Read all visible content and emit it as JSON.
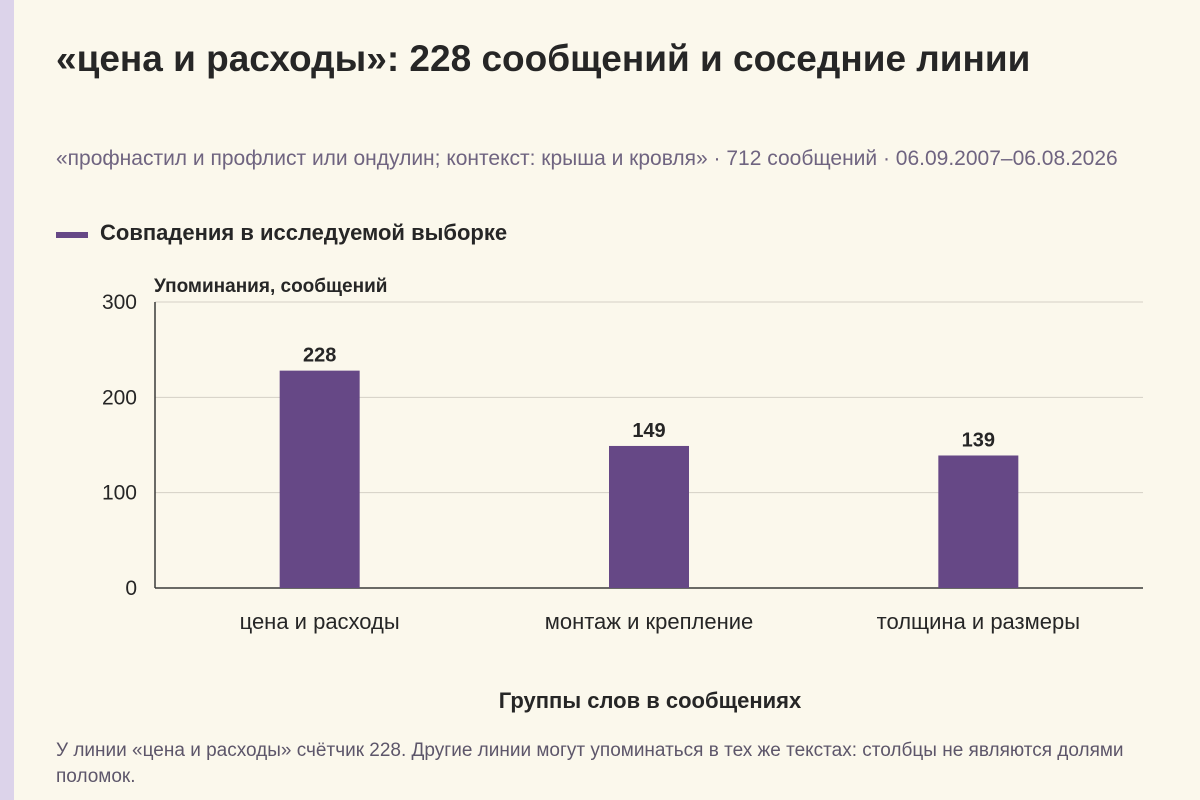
{
  "title": "«цена и расходы»: 228 сообщений и соседние линии",
  "subtitle": "«профнастил и профлист или ондулин; контекст: крыша и кровля» · 712 сообщений · 06.09.2007–06.08.2026",
  "footnote": "У линии «цена и расходы» счётчик 228. Другие линии могут упоминаться в тех же текстах: столбцы не являются долями поломок.",
  "colors": {
    "bar": "#664886",
    "axis": "#3a3a3a",
    "grid": "#d4d0c6",
    "background": "#fbf8ec",
    "accent_strip": "#dcd3ea"
  },
  "chart_data": {
    "type": "bar",
    "title": "",
    "xlabel": "Группы слов в сообщениях",
    "ylabel": "Упоминания, сообщений",
    "categories": [
      "цена и расходы",
      "монтаж и крепление",
      "толщина и размеры"
    ],
    "series": [
      {
        "name": "Совпадения в исследуемой выборке",
        "values": [
          228,
          149,
          139
        ]
      }
    ],
    "ylim": [
      0,
      300
    ],
    "yticks": [
      0,
      100,
      200,
      300
    ],
    "grid": true,
    "legend": "top-left",
    "data_labels": true
  }
}
